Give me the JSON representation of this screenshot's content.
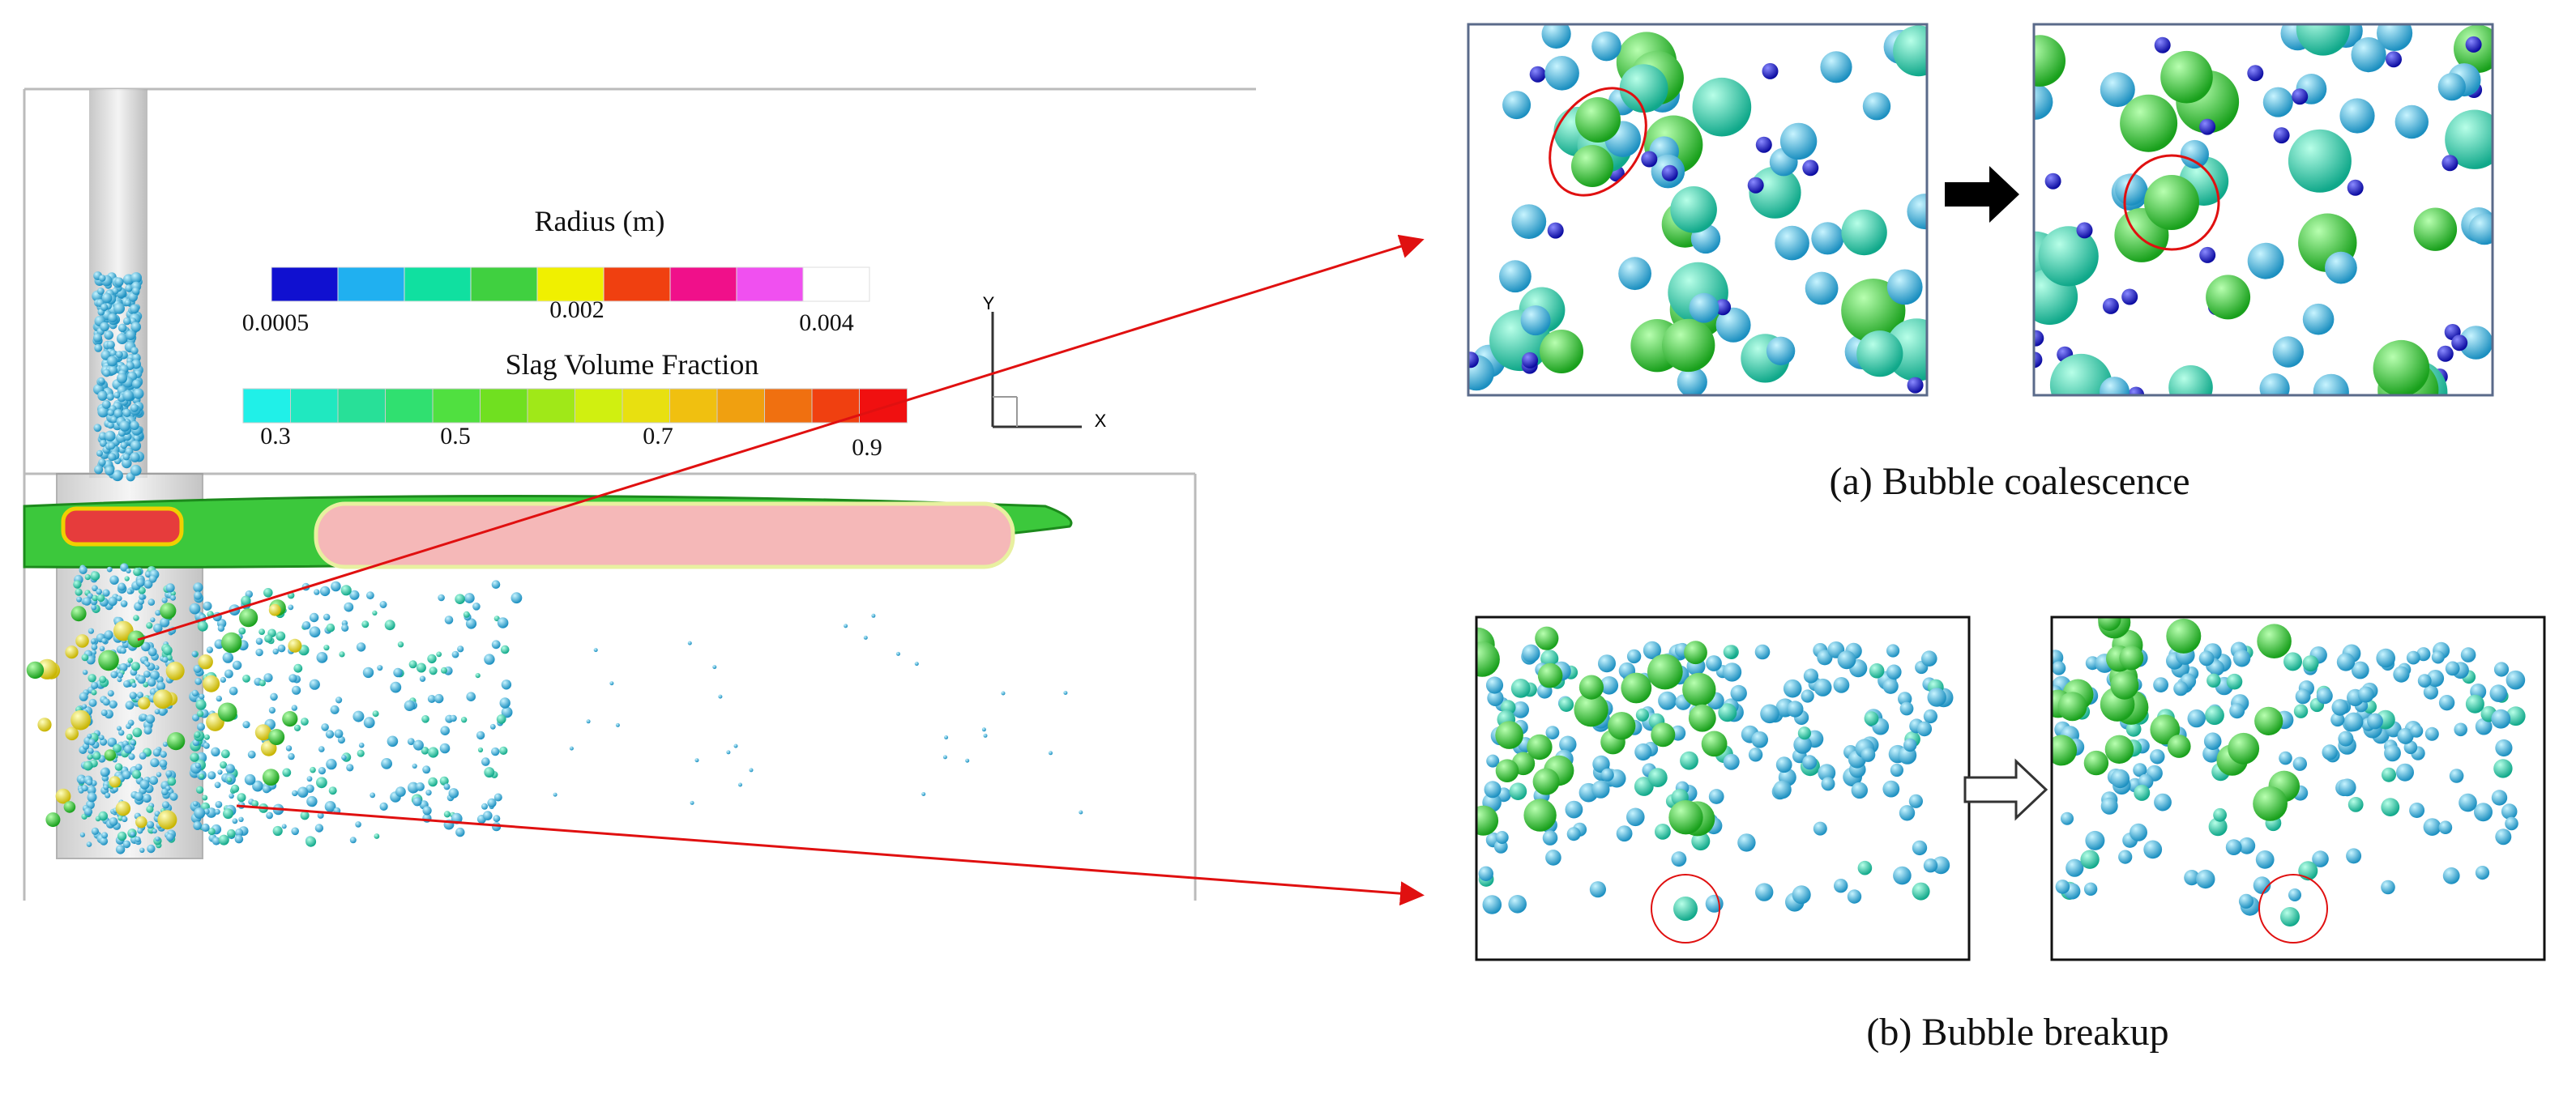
{
  "legend_radius": {
    "title": "Radius (m)",
    "ticks": [
      "0.0005",
      "0.002",
      "0.004"
    ]
  },
  "legend_slag": {
    "title": "Slag Volume Fraction",
    "ticks": [
      "0.3",
      "0.5",
      "0.7",
      "0.9"
    ]
  },
  "axes": {
    "y": "Y",
    "x": "X"
  },
  "panels": {
    "a": {
      "caption": "(a) Bubble coalescence"
    },
    "b": {
      "caption": "(b) Bubble breakup"
    }
  }
}
